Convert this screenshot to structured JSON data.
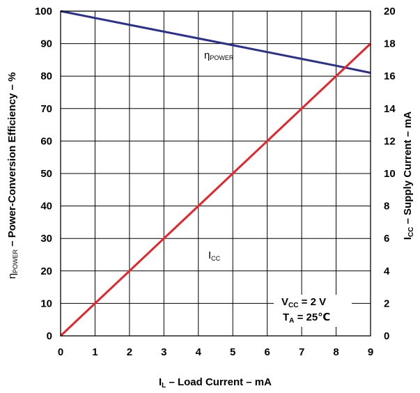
{
  "chart_data": {
    "type": "line",
    "x_axis": {
      "label_main": "I",
      "label_sub": "L",
      "label_rest": " – Load Current – mA",
      "range": [
        0,
        9
      ],
      "ticks": [
        "0",
        "1",
        "2",
        "3",
        "4",
        "5",
        "6",
        "7",
        "8",
        "9"
      ]
    },
    "y_axis_left": {
      "label_main": "η",
      "label_sub": "POWER",
      "label_rest": " – Power-Conversion Efficiency – %",
      "range": [
        0,
        100
      ],
      "ticks": [
        "0",
        "10",
        "20",
        "30",
        "40",
        "50",
        "60",
        "70",
        "80",
        "90",
        "100"
      ]
    },
    "y_axis_right": {
      "label_main": "I",
      "label_sub": "CC",
      "label_rest": " – Supply Current – mA",
      "range": [
        0,
        20
      ],
      "ticks": [
        "0",
        "2",
        "4",
        "6",
        "8",
        "10",
        "12",
        "14",
        "16",
        "18",
        "20"
      ]
    },
    "grid": true,
    "series": [
      {
        "name_main": "η",
        "name_sub": "POWER",
        "axis": "left",
        "color": "#2b2f8f",
        "x": [
          0,
          1,
          2,
          3,
          4,
          5,
          6,
          7,
          8,
          9
        ],
        "y": [
          100,
          97.9,
          95.8,
          93.7,
          91.6,
          89.5,
          87.4,
          85.3,
          83.2,
          81.0
        ]
      },
      {
        "name_main": "I",
        "name_sub": "CC",
        "axis": "right",
        "color": "#e8232a",
        "x": [
          0,
          1,
          2,
          3,
          4,
          5,
          6,
          7,
          8,
          9
        ],
        "y": [
          0,
          2,
          4,
          6,
          8,
          10,
          12,
          14,
          16,
          18
        ]
      }
    ],
    "annotation": {
      "line1_main": "V",
      "line1_sub": "CC",
      "line1_rest": " = 2 V",
      "line2_main": "T",
      "line2_sub": "A",
      "line2_rest": " = 25℃"
    }
  }
}
